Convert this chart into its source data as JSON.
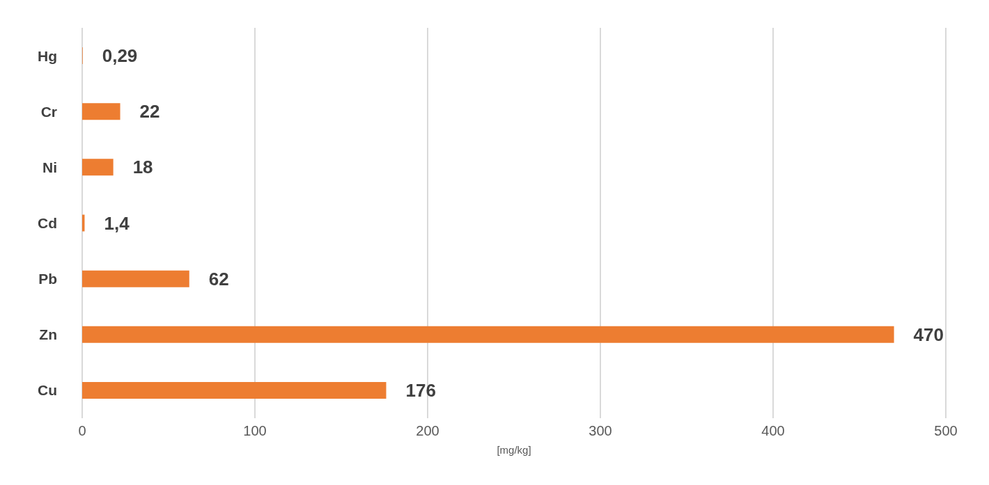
{
  "chart_data": {
    "type": "bar",
    "orientation": "horizontal",
    "xlabel": "[mg/kg]",
    "categories": [
      "Hg",
      "Cr",
      "Ni",
      "Cd",
      "Pb",
      "Zn",
      "Cu"
    ],
    "values": [
      0.29,
      22,
      18,
      1.4,
      62,
      470,
      176
    ],
    "value_labels": [
      "0,29",
      "22",
      "18",
      "1,4",
      "62",
      "470",
      "176"
    ],
    "color": "#ed7d31",
    "xlim": [
      0,
      500
    ],
    "xticks": [
      0,
      100,
      200,
      300,
      400,
      500
    ],
    "grid": "x"
  }
}
